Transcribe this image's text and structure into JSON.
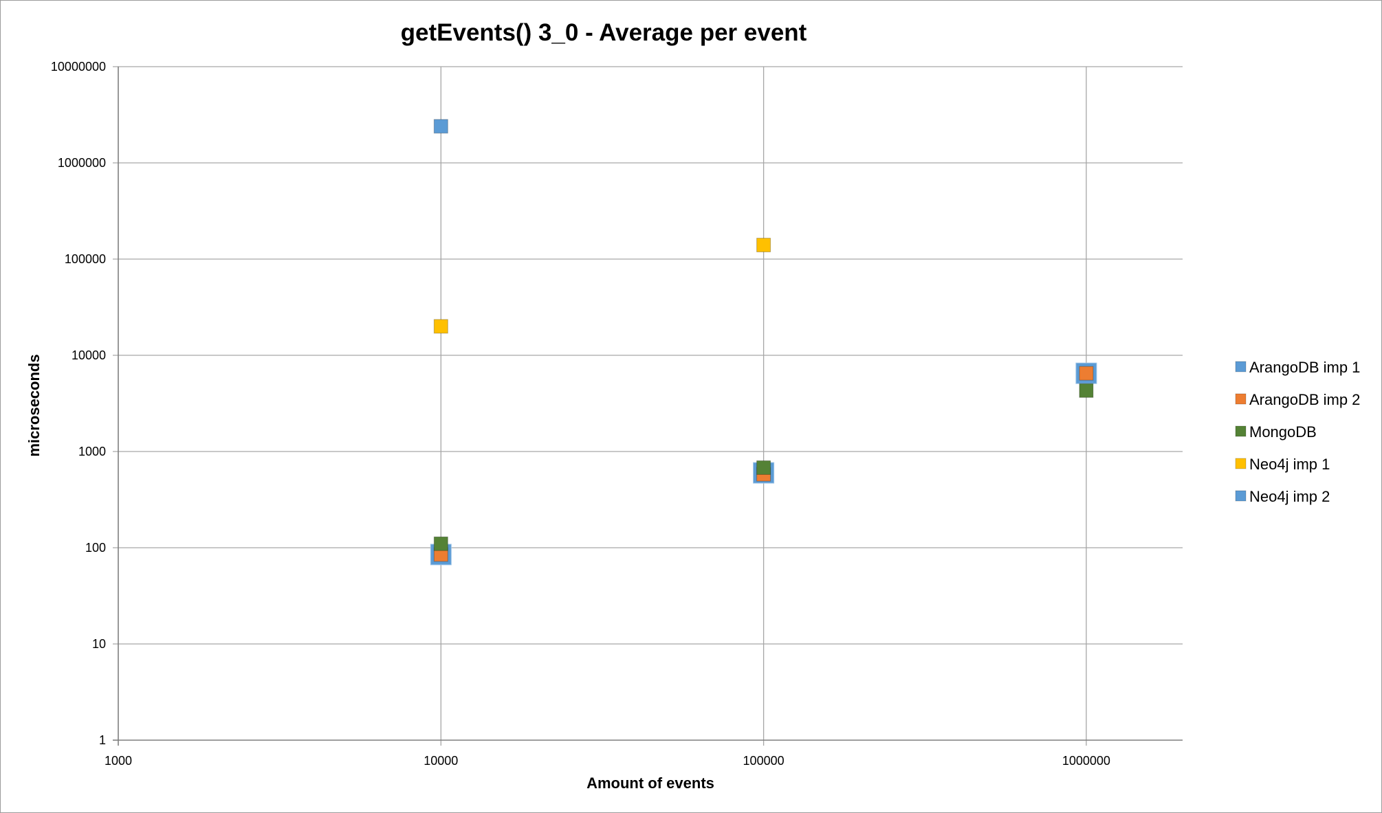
{
  "chart_data": {
    "type": "scatter",
    "title": "getEvents() 3_0 - Average per event",
    "xlabel": "Amount of events",
    "ylabel": "microseconds",
    "x_scale": "log",
    "y_scale": "log",
    "xlim": [
      1000,
      2000000
    ],
    "ylim": [
      1,
      10000000
    ],
    "x_ticks": [
      "1000",
      "10000",
      "100000",
      "1000000"
    ],
    "y_ticks": [
      "1",
      "10",
      "100",
      "1000",
      "10000",
      "100000",
      "1000000",
      "10000000"
    ],
    "grid": true,
    "legend_position": "right",
    "marker": "square",
    "series": [
      {
        "name": "ArangoDB imp 1",
        "color": "#5b9bd5",
        "x": [
          10000,
          100000,
          1000000
        ],
        "y": [
          85,
          600,
          6500
        ]
      },
      {
        "name": "ArangoDB imp 2",
        "color": "#ed7d31",
        "x": [
          10000,
          100000,
          1000000
        ],
        "y": [
          85,
          580,
          6500
        ]
      },
      {
        "name": "MongoDB",
        "color": "#548235",
        "x": [
          10000,
          100000,
          1000000
        ],
        "y": [
          110,
          680,
          4300
        ]
      },
      {
        "name": "Neo4j imp 1",
        "color": "#ffc000",
        "x": [
          10000,
          100000
        ],
        "y": [
          20000,
          140000
        ]
      },
      {
        "name": "Neo4j imp 2",
        "color": "#5b9bd5",
        "x": [
          10000
        ],
        "y": [
          2400000
        ]
      }
    ]
  }
}
